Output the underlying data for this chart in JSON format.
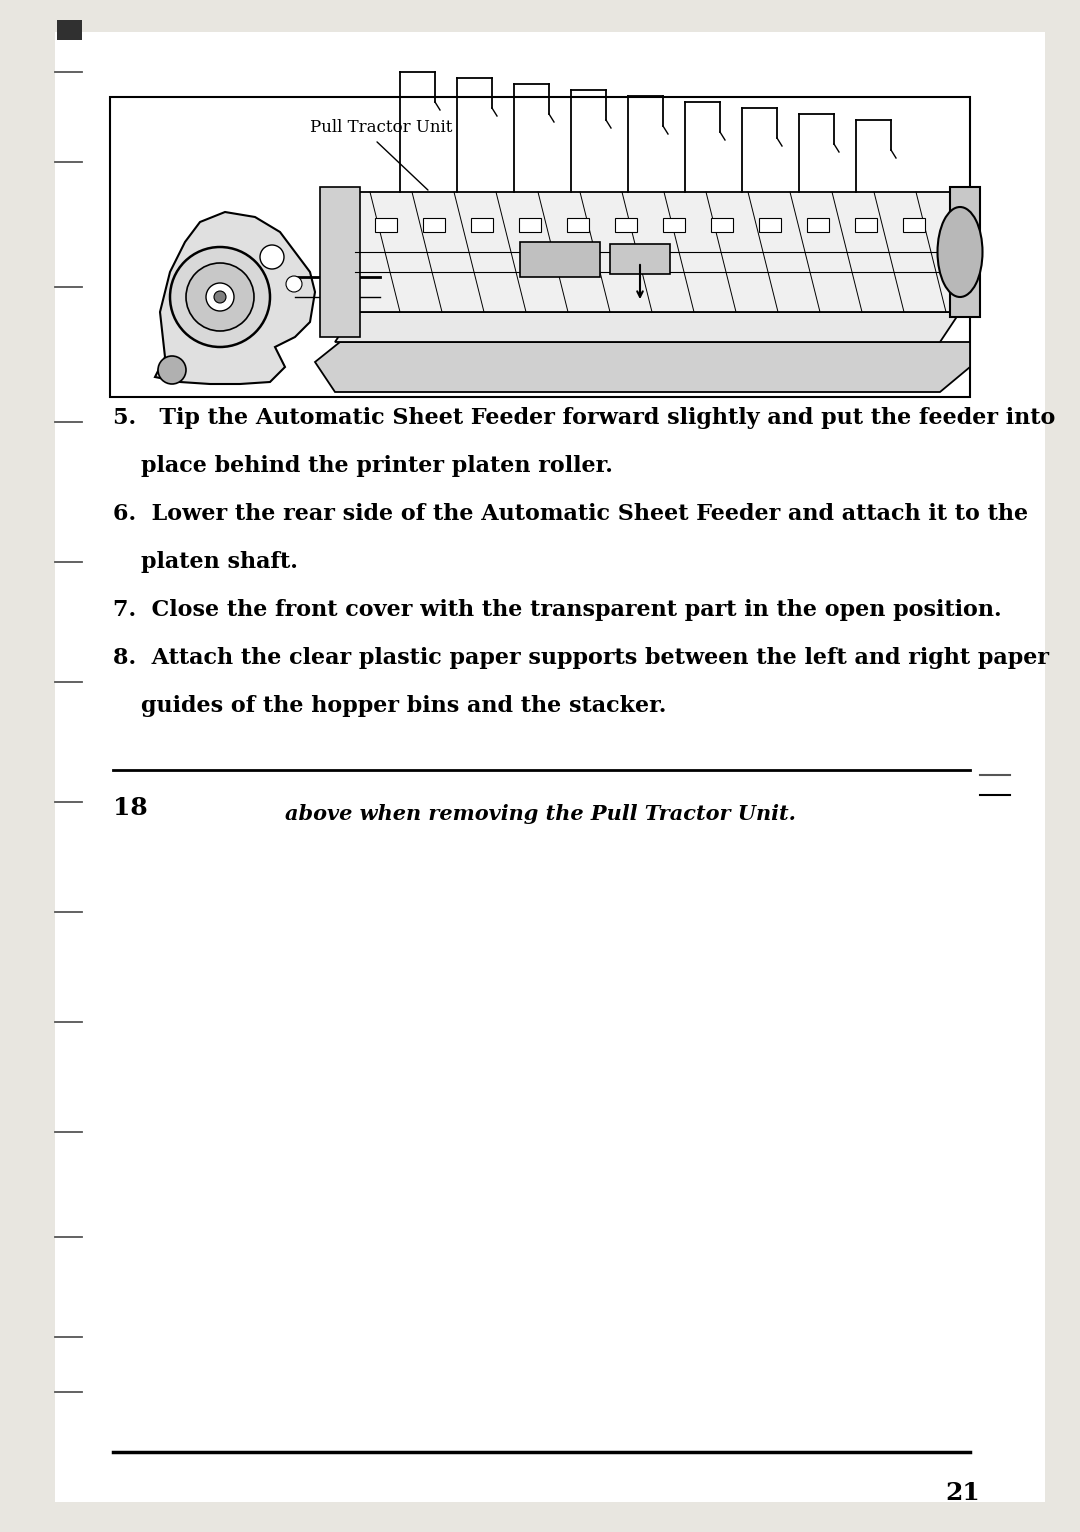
{
  "bg_color": "#e8e6e0",
  "page_bg": "#ffffff",
  "diagram_label": "Pull Tractor Unit",
  "item5_line1": "5.   Tip the Automatic Sheet Feeder forward slightly and put the feeder into",
  "item5_line2": "     place behind the printer platen roller.",
  "item6_line1": "6.  Lower the rear side of the Automatic Sheet Feeder and attach it to the",
  "item6_line2": "     platen shaft.",
  "item7_line1": "7.  Close the front cover with the transparent part in the open position.",
  "item8_line1": "8.  Attach the clear plastic paper supports between the left and right paper",
  "item8_line2": "     guides of the hopper bins and the stacker.",
  "page_number_18": "18",
  "page_number_21": "21",
  "footer_text": "above when removing the Pull Tractor Unit.",
  "font_size_body": 16,
  "font_size_label": 12,
  "font_size_page": 18
}
